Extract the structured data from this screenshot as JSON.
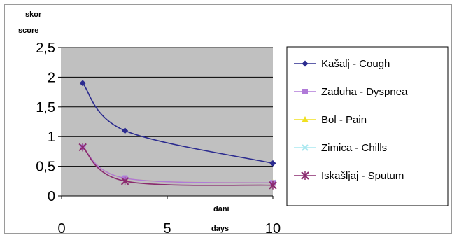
{
  "chart_data": {
    "type": "line",
    "ylabel_lines": [
      "skor",
      "score"
    ],
    "xlabel_lines": [
      "dani",
      "days"
    ],
    "xlim": [
      0,
      10
    ],
    "ylim": [
      0,
      2.5
    ],
    "x_ticks": [
      0,
      5,
      10
    ],
    "x_tick_labels": [
      "0",
      "5",
      "10"
    ],
    "y_ticks": [
      0,
      0.5,
      1,
      1.5,
      2,
      2.5
    ],
    "y_tick_labels": [
      "0",
      "0,5",
      "1",
      "1,5",
      "2",
      "2,5"
    ],
    "grid": true,
    "plot_background": "#c0c0c0",
    "legend_position": "right",
    "series": [
      {
        "name": "Kašalj - Cough",
        "x": [
          1,
          3,
          10
        ],
        "y": [
          1.9,
          1.1,
          0.55
        ],
        "color": "#2b2b8f",
        "marker": "diamond"
      },
      {
        "name": "Zaduha - Dyspnea",
        "x": [
          1,
          3,
          10
        ],
        "y": [
          0.82,
          0.3,
          0.22
        ],
        "color": "#b07ad8",
        "marker": "square"
      },
      {
        "name": "Bol - Pain",
        "x": [
          1,
          3,
          10
        ],
        "y": [
          0.82,
          0.3,
          0.22
        ],
        "color": "#f0e020",
        "marker": "triangle"
      },
      {
        "name": "Zimica - Chills",
        "x": [
          1,
          3,
          10
        ],
        "y": [
          0.82,
          0.3,
          0.22
        ],
        "color": "#a8e8f0",
        "marker": "x"
      },
      {
        "name": "Iskašljaj - Sputum",
        "x": [
          1,
          3,
          10
        ],
        "y": [
          0.82,
          0.25,
          0.18
        ],
        "color": "#8a2a6e",
        "marker": "star"
      }
    ]
  }
}
